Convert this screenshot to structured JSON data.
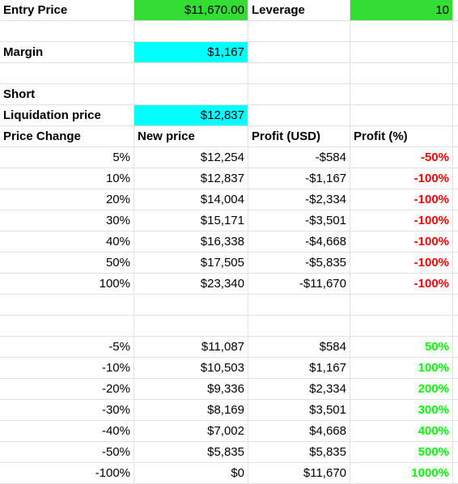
{
  "colors": {
    "green_fill": "#33dd33",
    "cyan_fill": "#00ffff",
    "negative_text": "#ff0000",
    "positive_text": "#00ff00",
    "gridline": "#e2e2e2"
  },
  "rows": [
    {
      "kind": "entry",
      "cells": [
        {
          "text": "Entry Price",
          "align": "l",
          "bold": true
        },
        {
          "text": "$11,670.00",
          "align": "r",
          "bg": "green_fill"
        },
        {
          "text": "Leverage",
          "align": "l",
          "bold": true
        },
        {
          "text": "10",
          "align": "r",
          "bg": "green_fill"
        }
      ]
    },
    {
      "kind": "blank",
      "cells": [
        {
          "text": ""
        },
        {
          "text": ""
        },
        {
          "text": ""
        },
        {
          "text": ""
        }
      ]
    },
    {
      "kind": "margin",
      "cells": [
        {
          "text": "Margin",
          "align": "l",
          "bold": true
        },
        {
          "text": "$1,167",
          "align": "r",
          "bg": "cyan_fill"
        },
        {
          "text": ""
        },
        {
          "text": ""
        }
      ]
    },
    {
      "kind": "blank",
      "cells": [
        {
          "text": ""
        },
        {
          "text": ""
        },
        {
          "text": ""
        },
        {
          "text": ""
        }
      ]
    },
    {
      "kind": "short",
      "cells": [
        {
          "text": "Short",
          "align": "l",
          "bold": true
        },
        {
          "text": ""
        },
        {
          "text": ""
        },
        {
          "text": ""
        }
      ]
    },
    {
      "kind": "liquidation",
      "cells": [
        {
          "text": "Liquidation price",
          "align": "l",
          "bold": true
        },
        {
          "text": "$12,837",
          "align": "r",
          "bg": "cyan_fill"
        },
        {
          "text": ""
        },
        {
          "text": ""
        }
      ]
    },
    {
      "kind": "header",
      "cells": [
        {
          "text": "Price Change",
          "align": "l",
          "bold": true
        },
        {
          "text": "New price",
          "align": "l",
          "bold": true
        },
        {
          "text": "Profit (USD)",
          "align": "l",
          "bold": true
        },
        {
          "text": "Profit (%)",
          "align": "l",
          "bold": true
        }
      ]
    },
    {
      "kind": "data",
      "cells": [
        {
          "text": "5%",
          "align": "r"
        },
        {
          "text": "$12,254",
          "align": "r"
        },
        {
          "text": "-$584",
          "align": "r"
        },
        {
          "text": "-50%",
          "align": "r",
          "bold": true,
          "fg": "negative_text"
        }
      ]
    },
    {
      "kind": "data",
      "cells": [
        {
          "text": "10%",
          "align": "r"
        },
        {
          "text": "$12,837",
          "align": "r"
        },
        {
          "text": "-$1,167",
          "align": "r"
        },
        {
          "text": "-100%",
          "align": "r",
          "bold": true,
          "fg": "negative_text"
        }
      ]
    },
    {
      "kind": "data",
      "cells": [
        {
          "text": "20%",
          "align": "r"
        },
        {
          "text": "$14,004",
          "align": "r"
        },
        {
          "text": "-$2,334",
          "align": "r"
        },
        {
          "text": "-100%",
          "align": "r",
          "bold": true,
          "fg": "negative_text"
        }
      ]
    },
    {
      "kind": "data",
      "cells": [
        {
          "text": "30%",
          "align": "r"
        },
        {
          "text": "$15,171",
          "align": "r"
        },
        {
          "text": "-$3,501",
          "align": "r"
        },
        {
          "text": "-100%",
          "align": "r",
          "bold": true,
          "fg": "negative_text"
        }
      ]
    },
    {
      "kind": "data",
      "cells": [
        {
          "text": "40%",
          "align": "r"
        },
        {
          "text": "$16,338",
          "align": "r"
        },
        {
          "text": "-$4,668",
          "align": "r"
        },
        {
          "text": "-100%",
          "align": "r",
          "bold": true,
          "fg": "negative_text"
        }
      ]
    },
    {
      "kind": "data",
      "cells": [
        {
          "text": "50%",
          "align": "r"
        },
        {
          "text": "$17,505",
          "align": "r"
        },
        {
          "text": "-$5,835",
          "align": "r"
        },
        {
          "text": "-100%",
          "align": "r",
          "bold": true,
          "fg": "negative_text"
        }
      ]
    },
    {
      "kind": "data",
      "cells": [
        {
          "text": "100%",
          "align": "r"
        },
        {
          "text": "$23,340",
          "align": "r"
        },
        {
          "text": "-$11,670",
          "align": "r"
        },
        {
          "text": "-100%",
          "align": "r",
          "bold": true,
          "fg": "negative_text"
        }
      ]
    },
    {
      "kind": "blank",
      "cells": [
        {
          "text": ""
        },
        {
          "text": ""
        },
        {
          "text": ""
        },
        {
          "text": ""
        }
      ]
    },
    {
      "kind": "blank",
      "cells": [
        {
          "text": ""
        },
        {
          "text": ""
        },
        {
          "text": ""
        },
        {
          "text": ""
        }
      ]
    },
    {
      "kind": "data",
      "cells": [
        {
          "text": "-5%",
          "align": "r"
        },
        {
          "text": "$11,087",
          "align": "r"
        },
        {
          "text": "$584",
          "align": "r"
        },
        {
          "text": "50%",
          "align": "r",
          "bold": true,
          "fg": "positive_text"
        }
      ]
    },
    {
      "kind": "data",
      "cells": [
        {
          "text": "-10%",
          "align": "r"
        },
        {
          "text": "$10,503",
          "align": "r"
        },
        {
          "text": "$1,167",
          "align": "r"
        },
        {
          "text": "100%",
          "align": "r",
          "bold": true,
          "fg": "positive_text"
        }
      ]
    },
    {
      "kind": "data",
      "cells": [
        {
          "text": "-20%",
          "align": "r"
        },
        {
          "text": "$9,336",
          "align": "r"
        },
        {
          "text": "$2,334",
          "align": "r"
        },
        {
          "text": "200%",
          "align": "r",
          "bold": true,
          "fg": "positive_text"
        }
      ]
    },
    {
      "kind": "data",
      "cells": [
        {
          "text": "-30%",
          "align": "r"
        },
        {
          "text": "$8,169",
          "align": "r"
        },
        {
          "text": "$3,501",
          "align": "r"
        },
        {
          "text": "300%",
          "align": "r",
          "bold": true,
          "fg": "positive_text"
        }
      ]
    },
    {
      "kind": "data",
      "cells": [
        {
          "text": "-40%",
          "align": "r"
        },
        {
          "text": "$7,002",
          "align": "r"
        },
        {
          "text": "$4,668",
          "align": "r"
        },
        {
          "text": "400%",
          "align": "r",
          "bold": true,
          "fg": "positive_text"
        }
      ]
    },
    {
      "kind": "data",
      "cells": [
        {
          "text": "-50%",
          "align": "r"
        },
        {
          "text": "$5,835",
          "align": "r"
        },
        {
          "text": "$5,835",
          "align": "r"
        },
        {
          "text": "500%",
          "align": "r",
          "bold": true,
          "fg": "positive_text"
        }
      ]
    },
    {
      "kind": "data",
      "cells": [
        {
          "text": "-100%",
          "align": "r"
        },
        {
          "text": "$0",
          "align": "r"
        },
        {
          "text": "$11,670",
          "align": "r"
        },
        {
          "text": "1000%",
          "align": "r",
          "bold": true,
          "fg": "positive_text"
        }
      ]
    }
  ]
}
